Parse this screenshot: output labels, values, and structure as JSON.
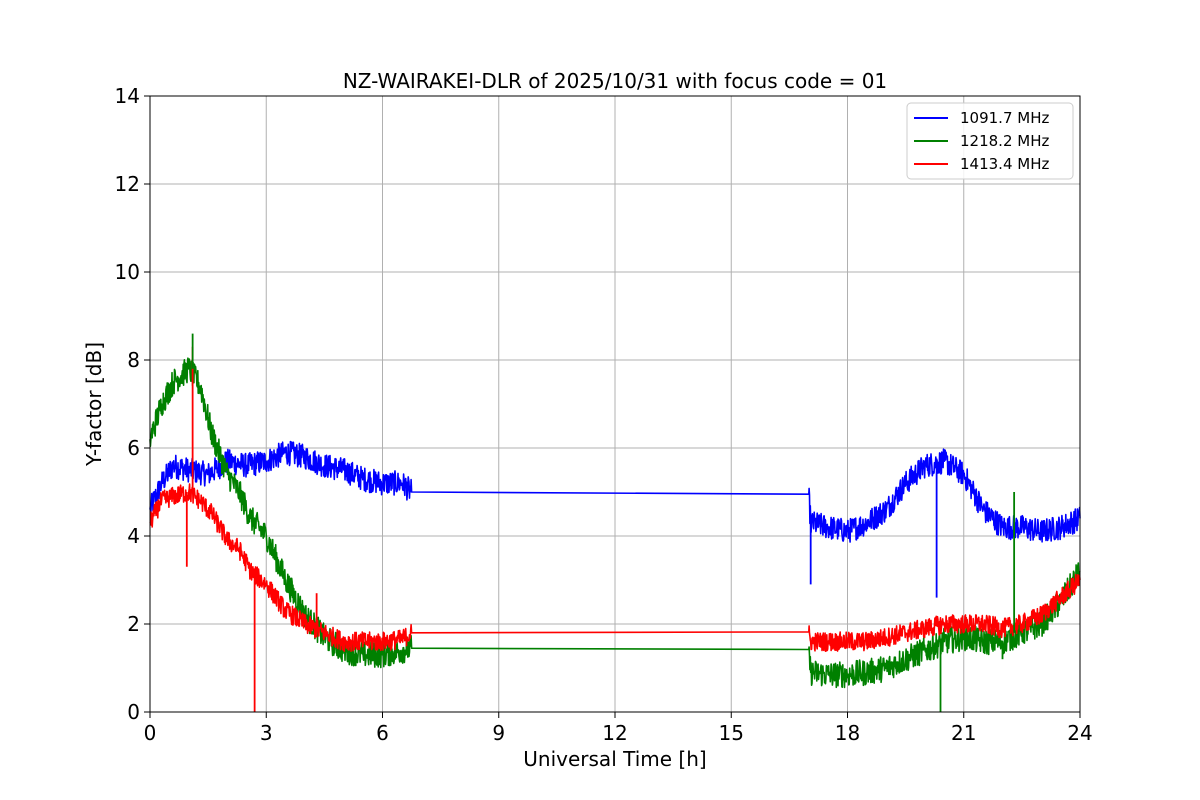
{
  "chart_data": {
    "type": "line",
    "title": "NZ-WAIRAKEI-DLR of 2025/10/31 with focus code = 01",
    "xlabel": "Universal Time [h]",
    "ylabel": "Y-factor [dB]",
    "xlim": [
      0,
      24
    ],
    "ylim": [
      0,
      14
    ],
    "xticks": [
      0,
      3,
      6,
      9,
      12,
      15,
      18,
      21,
      24
    ],
    "yticks": [
      0,
      2,
      4,
      6,
      8,
      10,
      12,
      14
    ],
    "grid": true,
    "legend_position": "top-right",
    "series": [
      {
        "name": "1091.7 MHz",
        "color": "#0000ff",
        "points": [
          [
            0,
            4.6
          ],
          [
            0.3,
            5.2
          ],
          [
            0.6,
            5.6
          ],
          [
            1.0,
            5.5
          ],
          [
            1.5,
            5.4
          ],
          [
            2.0,
            5.7
          ],
          [
            2.5,
            5.6
          ],
          [
            3.0,
            5.7
          ],
          [
            3.5,
            5.9
          ],
          [
            4.0,
            5.8
          ],
          [
            4.5,
            5.6
          ],
          [
            5.0,
            5.5
          ],
          [
            5.5,
            5.3
          ],
          [
            6.0,
            5.2
          ],
          [
            6.5,
            5.2
          ],
          [
            6.75,
            5.0
          ],
          [
            17.0,
            4.95
          ],
          [
            17.05,
            4.3
          ],
          [
            17.5,
            4.2
          ],
          [
            18.0,
            4.1
          ],
          [
            18.5,
            4.3
          ],
          [
            19.0,
            4.6
          ],
          [
            19.5,
            5.2
          ],
          [
            20.0,
            5.6
          ],
          [
            20.5,
            5.7
          ],
          [
            21.0,
            5.4
          ],
          [
            21.5,
            4.6
          ],
          [
            22.0,
            4.2
          ],
          [
            22.5,
            4.2
          ],
          [
            23.0,
            4.1
          ],
          [
            23.5,
            4.2
          ],
          [
            24.0,
            4.4
          ]
        ]
      },
      {
        "name": "1218.2 MHz",
        "color": "#008000",
        "points": [
          [
            0,
            6.2
          ],
          [
            0.3,
            7.0
          ],
          [
            0.6,
            7.5
          ],
          [
            1.0,
            7.8
          ],
          [
            1.3,
            7.4
          ],
          [
            1.6,
            6.3
          ],
          [
            2.0,
            5.4
          ],
          [
            2.3,
            5.0
          ],
          [
            2.6,
            4.4
          ],
          [
            3.0,
            4.0
          ],
          [
            3.5,
            3.0
          ],
          [
            4.0,
            2.2
          ],
          [
            4.5,
            1.7
          ],
          [
            5.0,
            1.4
          ],
          [
            5.5,
            1.3
          ],
          [
            6.0,
            1.3
          ],
          [
            6.5,
            1.4
          ],
          [
            6.75,
            1.45
          ],
          [
            17.0,
            1.42
          ],
          [
            17.05,
            0.9
          ],
          [
            17.5,
            0.85
          ],
          [
            18.0,
            0.85
          ],
          [
            18.5,
            0.9
          ],
          [
            19.0,
            1.0
          ],
          [
            19.5,
            1.2
          ],
          [
            20.0,
            1.4
          ],
          [
            20.5,
            1.6
          ],
          [
            21.0,
            1.7
          ],
          [
            21.5,
            1.6
          ],
          [
            22.0,
            1.6
          ],
          [
            22.5,
            1.8
          ],
          [
            23.0,
            2.0
          ],
          [
            23.5,
            2.5
          ],
          [
            24.0,
            3.2
          ]
        ]
      },
      {
        "name": "1413.4 MHz",
        "color": "#ff0000",
        "points": [
          [
            0,
            4.3
          ],
          [
            0.3,
            4.8
          ],
          [
            0.6,
            4.9
          ],
          [
            1.0,
            5.0
          ],
          [
            1.3,
            4.8
          ],
          [
            1.6,
            4.5
          ],
          [
            2.0,
            3.9
          ],
          [
            2.3,
            3.7
          ],
          [
            2.6,
            3.2
          ],
          [
            3.0,
            2.9
          ],
          [
            3.5,
            2.3
          ],
          [
            4.0,
            2.0
          ],
          [
            4.5,
            1.8
          ],
          [
            5.0,
            1.6
          ],
          [
            5.5,
            1.6
          ],
          [
            6.0,
            1.6
          ],
          [
            6.5,
            1.65
          ],
          [
            6.75,
            1.8
          ],
          [
            17.0,
            1.82
          ],
          [
            17.05,
            1.6
          ],
          [
            17.5,
            1.6
          ],
          [
            18.0,
            1.6
          ],
          [
            18.5,
            1.6
          ],
          [
            19.0,
            1.7
          ],
          [
            19.5,
            1.8
          ],
          [
            20.0,
            1.9
          ],
          [
            20.5,
            2.0
          ],
          [
            21.0,
            2.0
          ],
          [
            21.5,
            2.0
          ],
          [
            22.0,
            1.9
          ],
          [
            22.5,
            2.0
          ],
          [
            23.0,
            2.2
          ],
          [
            23.5,
            2.6
          ],
          [
            24.0,
            3.0
          ]
        ]
      }
    ],
    "spikes": [
      {
        "series": 2,
        "x": 1.1,
        "y": 8.3
      },
      {
        "series": 2,
        "x": 0.95,
        "y": 3.3
      },
      {
        "series": 2,
        "x": 2.7,
        "y": 0.0
      },
      {
        "series": 2,
        "x": 4.3,
        "y": 2.7
      },
      {
        "series": 1,
        "x": 1.1,
        "y": 8.6
      },
      {
        "series": 1,
        "x": 20.4,
        "y": 0.0
      },
      {
        "series": 1,
        "x": 22.3,
        "y": 5.0
      },
      {
        "series": 1,
        "x": 22.0,
        "y": 1.2
      },
      {
        "series": 0,
        "x": 20.3,
        "y": 2.6
      },
      {
        "series": 0,
        "x": 17.05,
        "y": 2.9
      }
    ]
  }
}
